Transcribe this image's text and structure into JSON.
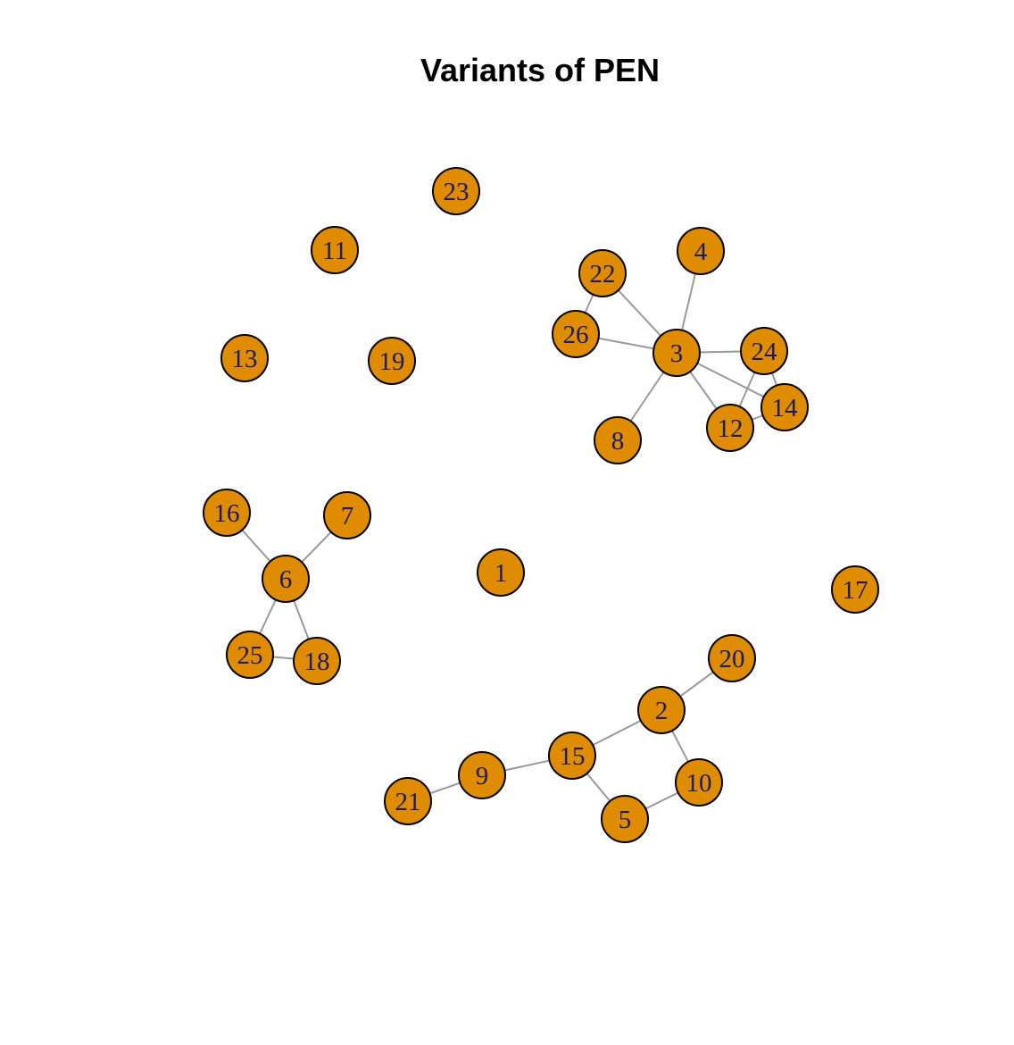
{
  "title": "Variants of PEN",
  "style": {
    "node_fill": "#E08C00",
    "node_stroke": "#000000",
    "label_color": "#1A1A6E",
    "edge_color": "#999999"
  },
  "nodes": [
    {
      "id": "1"
    },
    {
      "id": "2"
    },
    {
      "id": "3"
    },
    {
      "id": "4"
    },
    {
      "id": "5"
    },
    {
      "id": "6"
    },
    {
      "id": "7"
    },
    {
      "id": "8"
    },
    {
      "id": "9"
    },
    {
      "id": "10"
    },
    {
      "id": "11"
    },
    {
      "id": "12"
    },
    {
      "id": "13"
    },
    {
      "id": "14"
    },
    {
      "id": "15"
    },
    {
      "id": "16"
    },
    {
      "id": "17"
    },
    {
      "id": "18"
    },
    {
      "id": "19"
    },
    {
      "id": "20"
    },
    {
      "id": "21"
    },
    {
      "id": "22"
    },
    {
      "id": "23"
    },
    {
      "id": "24"
    },
    {
      "id": "25"
    },
    {
      "id": "26"
    }
  ],
  "edges": [
    [
      "22",
      "26"
    ],
    [
      "22",
      "3"
    ],
    [
      "4",
      "3"
    ],
    [
      "26",
      "3"
    ],
    [
      "3",
      "24"
    ],
    [
      "3",
      "14"
    ],
    [
      "3",
      "12"
    ],
    [
      "3",
      "8"
    ],
    [
      "24",
      "12"
    ],
    [
      "24",
      "14"
    ],
    [
      "12",
      "14"
    ],
    [
      "16",
      "6"
    ],
    [
      "7",
      "6"
    ],
    [
      "6",
      "25"
    ],
    [
      "6",
      "18"
    ],
    [
      "25",
      "18"
    ],
    [
      "20",
      "2"
    ],
    [
      "2",
      "15"
    ],
    [
      "2",
      "10"
    ],
    [
      "15",
      "9"
    ],
    [
      "15",
      "5"
    ],
    [
      "5",
      "10"
    ],
    [
      "9",
      "21"
    ]
  ]
}
